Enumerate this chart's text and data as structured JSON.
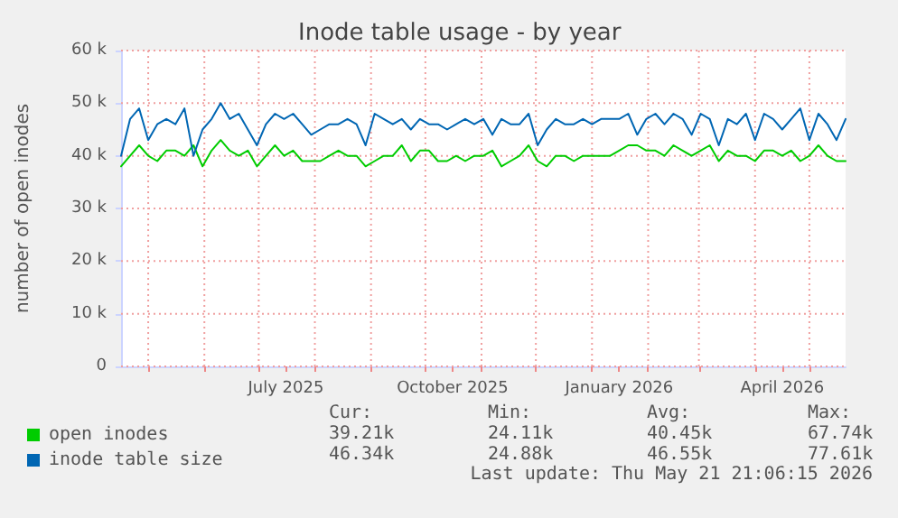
{
  "chart_data": {
    "type": "line",
    "title": "Inode table usage - by year",
    "ylabel": "number of open inodes",
    "x": [
      "2025-04-16",
      "2025-04-21",
      "2025-04-26",
      "2025-05-01",
      "2025-05-06",
      "2025-05-11",
      "2025-05-16",
      "2025-05-21",
      "2025-05-26",
      "2025-05-31",
      "2025-06-05",
      "2025-06-10",
      "2025-06-15",
      "2025-06-20",
      "2025-06-25",
      "2025-06-30",
      "2025-07-05",
      "2025-07-10",
      "2025-07-15",
      "2025-07-20",
      "2025-07-25",
      "2025-07-30",
      "2025-08-04",
      "2025-08-09",
      "2025-08-14",
      "2025-08-19",
      "2025-08-24",
      "2025-08-29",
      "2025-09-03",
      "2025-09-08",
      "2025-09-13",
      "2025-09-18",
      "2025-09-23",
      "2025-09-28",
      "2025-10-03",
      "2025-10-08",
      "2025-10-13",
      "2025-10-18",
      "2025-10-23",
      "2025-10-28",
      "2025-11-02",
      "2025-11-07",
      "2025-11-12",
      "2025-11-17",
      "2025-11-22",
      "2025-11-27",
      "2025-12-02",
      "2025-12-07",
      "2025-12-12",
      "2025-12-17",
      "2025-12-22",
      "2025-12-27",
      "2026-01-01",
      "2026-01-06",
      "2026-01-11",
      "2026-01-16",
      "2026-01-21",
      "2026-01-26",
      "2026-01-31",
      "2026-02-05",
      "2026-02-10",
      "2026-02-15",
      "2026-02-20",
      "2026-02-25",
      "2026-03-02",
      "2026-03-07",
      "2026-03-12",
      "2026-03-17",
      "2026-03-22",
      "2026-03-27",
      "2026-04-01",
      "2026-04-06",
      "2026-04-11",
      "2026-04-16",
      "2026-04-21",
      "2026-04-26",
      "2026-05-01",
      "2026-05-06",
      "2026-05-11",
      "2026-05-16",
      "2026-05-21"
    ],
    "series": [
      {
        "name": "open inodes",
        "color": "#00cc00",
        "values": [
          38000,
          40000,
          42000,
          40000,
          39000,
          41000,
          41000,
          40000,
          42000,
          38000,
          41000,
          43000,
          41000,
          40000,
          41000,
          38000,
          40000,
          42000,
          40000,
          41000,
          39000,
          39000,
          39000,
          40000,
          41000,
          40000,
          40000,
          38000,
          39000,
          40000,
          40000,
          42000,
          39000,
          41000,
          41000,
          39000,
          39000,
          40000,
          39000,
          40000,
          40000,
          41000,
          38000,
          39000,
          40000,
          42000,
          39000,
          38000,
          40000,
          40000,
          39000,
          40000,
          40000,
          40000,
          40000,
          41000,
          42000,
          42000,
          41000,
          41000,
          40000,
          42000,
          41000,
          40000,
          41000,
          42000,
          39000,
          41000,
          40000,
          40000,
          39000,
          41000,
          41000,
          40000,
          41000,
          39000,
          40000,
          42000,
          40000,
          39000,
          39000
        ]
      },
      {
        "name": "inode table size",
        "color": "#0066b3",
        "values": [
          40000,
          47000,
          49000,
          43000,
          46000,
          47000,
          46000,
          49000,
          40000,
          45000,
          47000,
          50000,
          47000,
          48000,
          45000,
          42000,
          46000,
          48000,
          47000,
          48000,
          46000,
          44000,
          45000,
          46000,
          46000,
          47000,
          46000,
          42000,
          48000,
          47000,
          46000,
          47000,
          45000,
          47000,
          46000,
          46000,
          45000,
          46000,
          47000,
          46000,
          47000,
          44000,
          47000,
          46000,
          46000,
          48000,
          42000,
          45000,
          47000,
          46000,
          46000,
          47000,
          46000,
          47000,
          47000,
          47000,
          48000,
          44000,
          47000,
          48000,
          46000,
          48000,
          47000,
          44000,
          48000,
          47000,
          42000,
          47000,
          46000,
          48000,
          43000,
          48000,
          47000,
          45000,
          47000,
          49000,
          43000,
          48000,
          46000,
          43000,
          47000
        ]
      }
    ],
    "xlim": [
      "2025-04-16",
      "2026-05-21"
    ],
    "xticks": [
      {
        "value": "2025-05-01",
        "label": null
      },
      {
        "value": "2025-06-01",
        "label": null
      },
      {
        "value": "2025-07-01",
        "label": null
      },
      {
        "value": "2025-07-16",
        "label": "July 2025"
      },
      {
        "value": "2025-08-01",
        "label": null
      },
      {
        "value": "2025-09-01",
        "label": null
      },
      {
        "value": "2025-10-01",
        "label": null
      },
      {
        "value": "2025-10-16",
        "label": "October 2025"
      },
      {
        "value": "2025-11-01",
        "label": null
      },
      {
        "value": "2025-12-01",
        "label": null
      },
      {
        "value": "2026-01-01",
        "label": null
      },
      {
        "value": "2026-01-16",
        "label": "January 2026"
      },
      {
        "value": "2026-02-01",
        "label": null
      },
      {
        "value": "2026-03-01",
        "label": null
      },
      {
        "value": "2026-04-01",
        "label": null
      },
      {
        "value": "2026-04-16",
        "label": "April 2026"
      },
      {
        "value": "2026-05-01",
        "label": null
      }
    ],
    "ylim": [
      0,
      60000
    ],
    "yticks": [
      {
        "value": 0,
        "label": "0"
      },
      {
        "value": 10000,
        "label": "10 k"
      },
      {
        "value": 20000,
        "label": "20 k"
      },
      {
        "value": 30000,
        "label": "30 k"
      },
      {
        "value": 40000,
        "label": "40 k"
      },
      {
        "value": 50000,
        "label": "50 k"
      },
      {
        "value": 60000,
        "label": "60 k"
      }
    ],
    "grid": true,
    "legend": "bottom left",
    "marker": "none",
    "line_style": "solid",
    "annotations": [
      "Cur:",
      "Min:",
      "Avg:",
      "Max:",
      "39.21k",
      "24.11k",
      "40.45k",
      "67.74k",
      "46.34k",
      "24.88k",
      "46.55k",
      "77.61k",
      "Last update: Thu May 21 21:06:15 2026"
    ]
  }
}
